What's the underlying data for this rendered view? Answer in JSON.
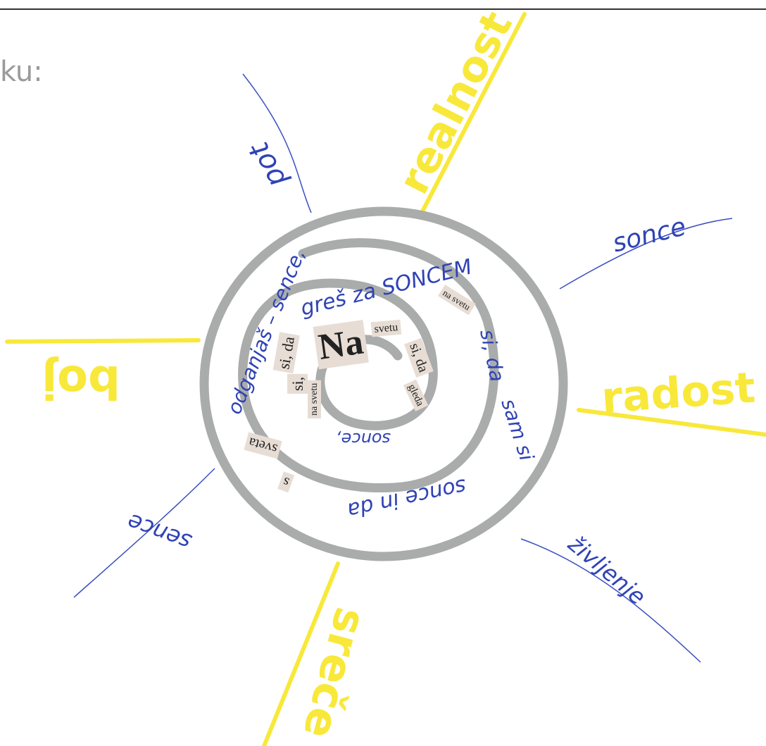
{
  "header_text": "ku:",
  "rays": [
    "pot",
    "realnost",
    "sonce",
    "boj",
    "radost",
    "sence",
    "življenje",
    "sreče"
  ],
  "spiral": {
    "handwritten": [
      "odganjaš – sence,",
      "greš za SONCEM",
      "si, da",
      "sam si",
      "sonce in da",
      "sonce,"
    ],
    "clippings": [
      "Na",
      "svetu",
      "si, da",
      "gleda",
      "na svetu",
      "na svetu",
      "si, da",
      "si,",
      "sveta",
      "s"
    ]
  }
}
